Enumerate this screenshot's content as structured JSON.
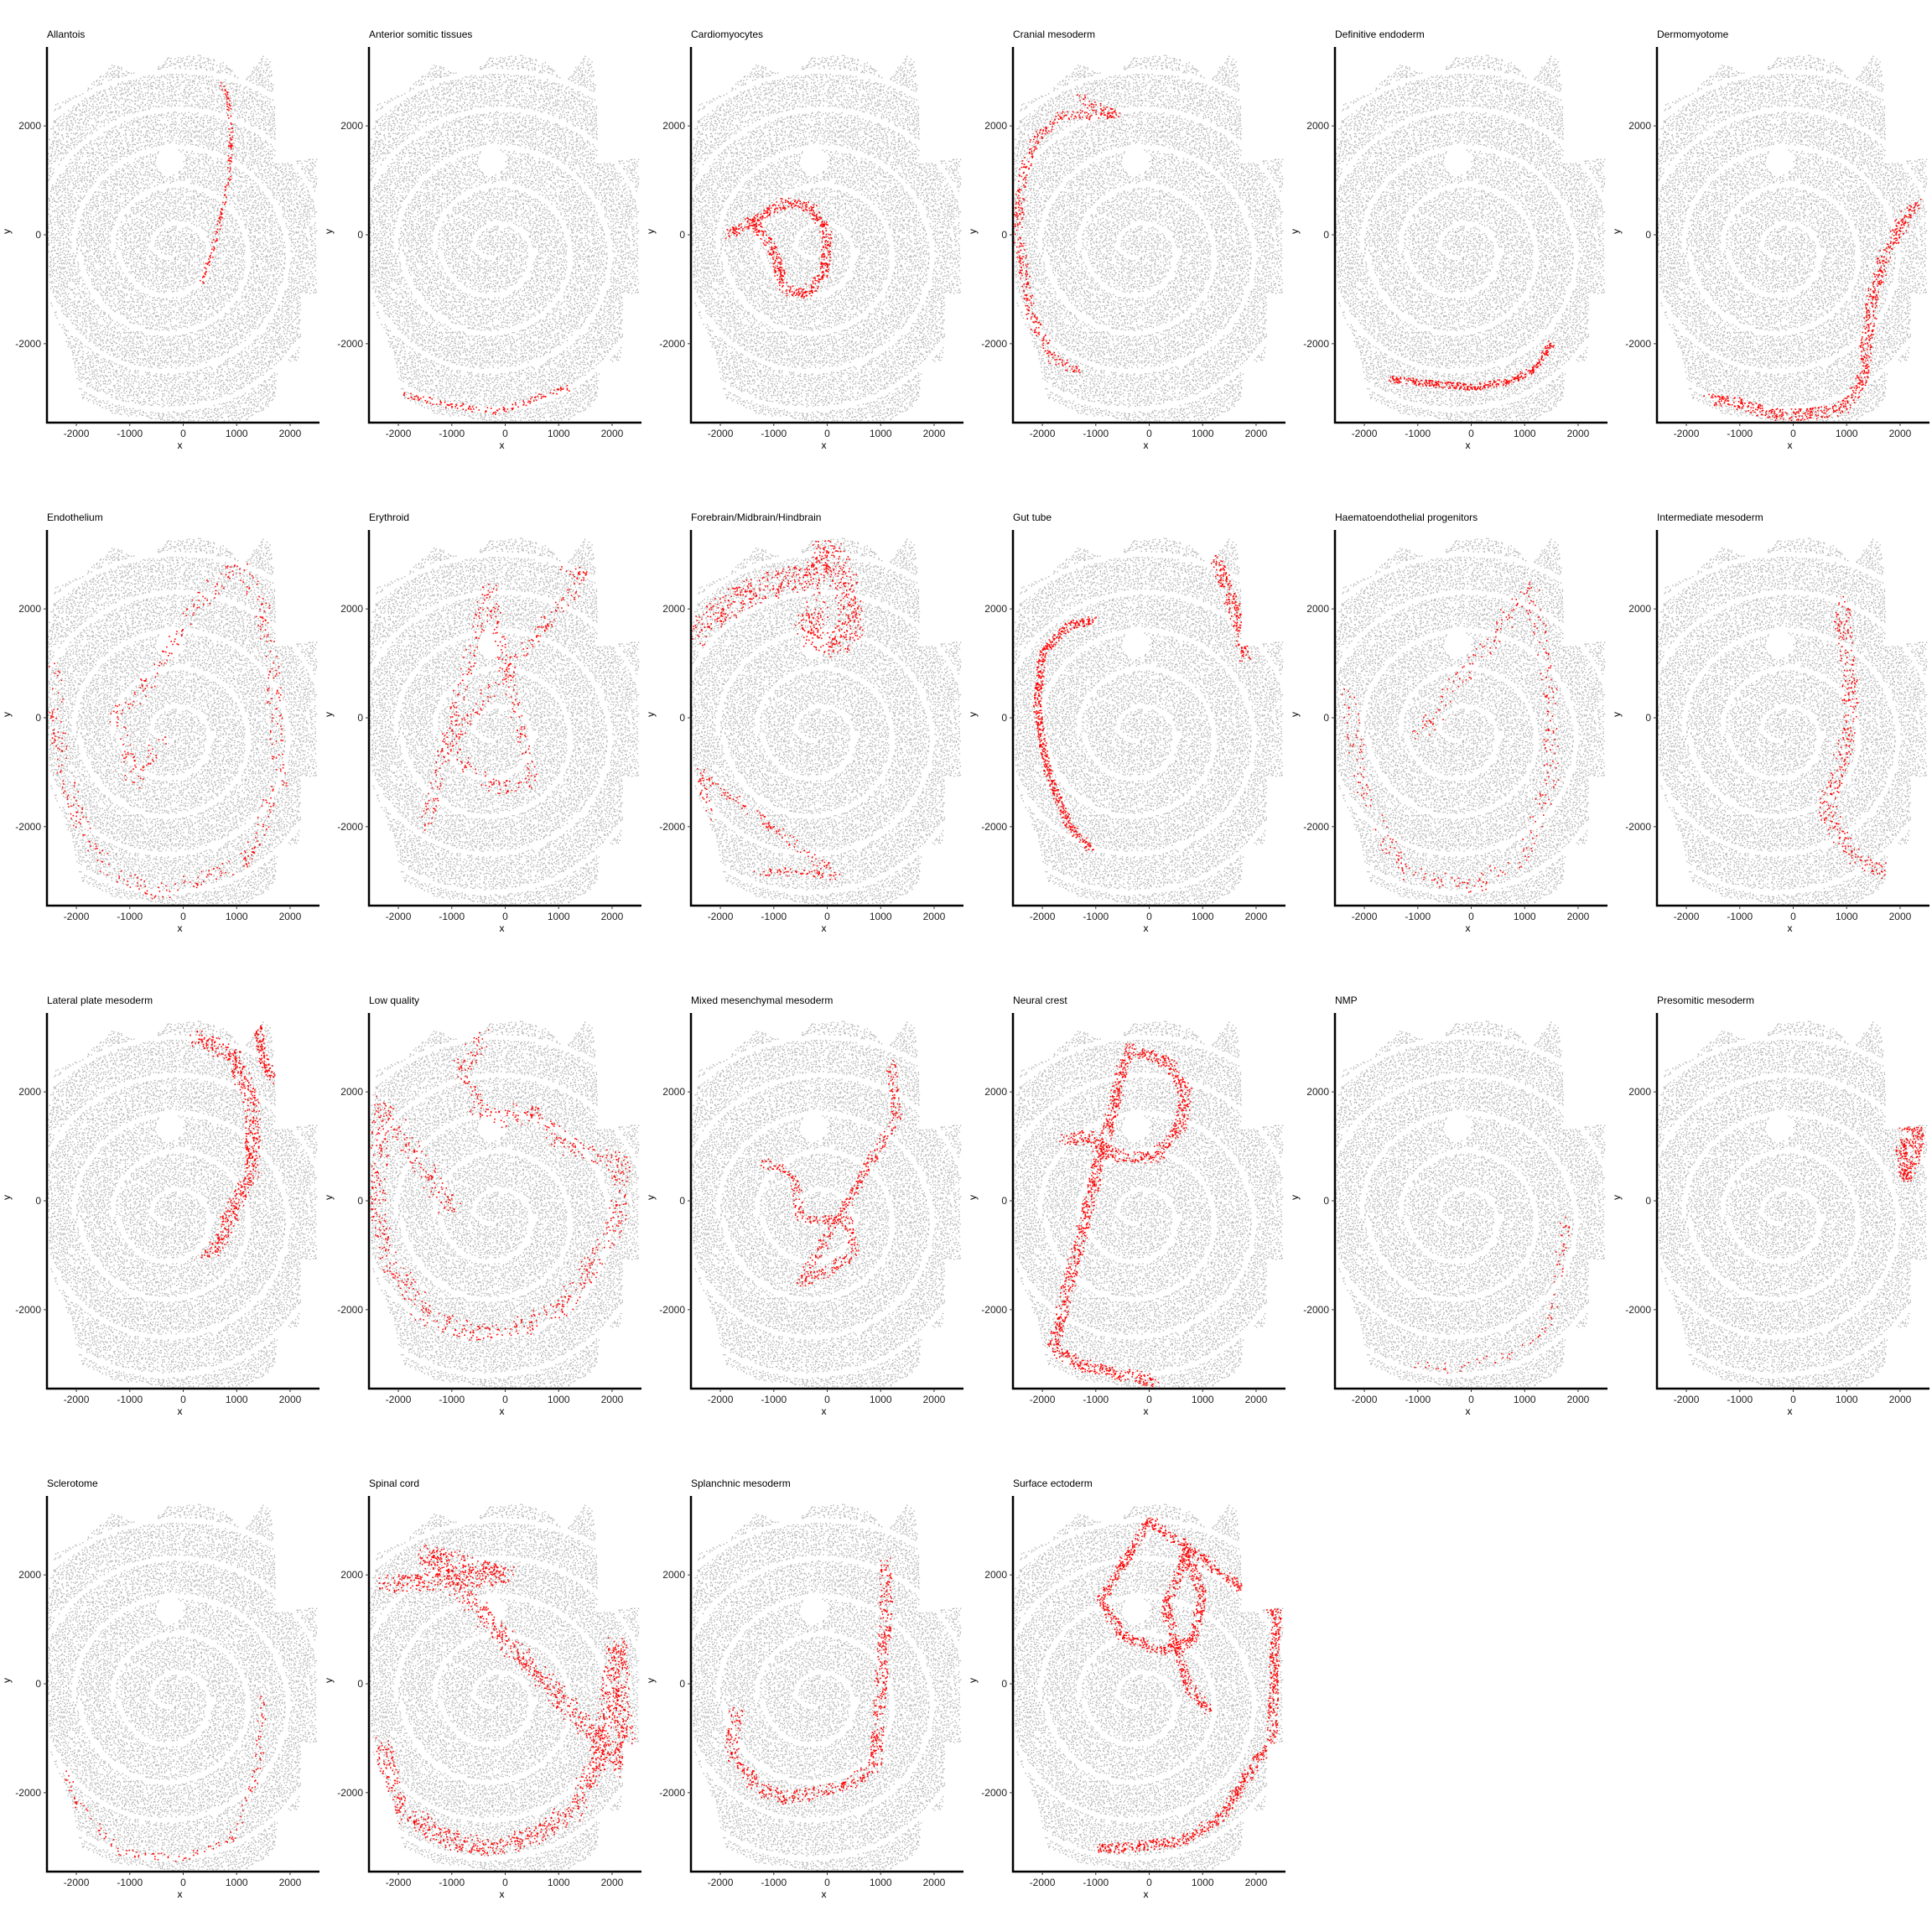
{
  "colors": {
    "background": "#ffffff",
    "all_cells": "#b3b3b3",
    "highlighted_cells": "#ff0000",
    "axis": "#000000"
  },
  "chart_data": {
    "type": "scatter",
    "layout": "facet-grid",
    "columns": 6,
    "xlabel": "x",
    "ylabel": "y",
    "xticks": [
      -2000,
      -1000,
      0,
      1000,
      2000
    ],
    "yticks": [
      -2000,
      0,
      2000
    ],
    "xlim": [
      -2550,
      2550
    ],
    "ylim": [
      -3450,
      3450
    ],
    "legend": "none",
    "background_series": "all cells (grey)",
    "panels": [
      {
        "title": "Allantois",
        "highlight": [
          [
            [
              700,
              2800
            ],
            [
              850,
              2500
            ],
            [
              900,
              1800
            ],
            [
              850,
              1000
            ],
            [
              700,
              300
            ],
            [
              550,
              -300
            ],
            [
              350,
              -900
            ]
          ],
          40,
          0.35
        ]
      },
      {
        "title": "Anterior somitic tissues",
        "highlight": [
          [
            [
              -2100,
              -2900
            ],
            [
              -1200,
              -3100
            ],
            [
              -200,
              -3250
            ],
            [
              600,
              -3000
            ],
            [
              1200,
              -2800
            ]
          ],
          60,
          0.35
        ]
      },
      {
        "title": "Cardiomyocytes",
        "highlight": [
          [
            [
              -1850,
              0
            ],
            [
              -1300,
              300
            ],
            [
              -800,
              600
            ],
            [
              -300,
              500
            ],
            [
              0,
              0
            ],
            [
              -50,
              -700
            ],
            [
              -400,
              -1100
            ],
            [
              -800,
              -1000
            ],
            [
              -1000,
              -300
            ],
            [
              -1350,
              200
            ]
          ],
          90,
          1.0
        ]
      },
      {
        "title": "Cranial mesoderm",
        "highlight": [
          [
            [
              -1300,
              2500
            ],
            [
              -600,
              2200
            ],
            [
              -1600,
              2200
            ],
            [
              -2100,
              1800
            ],
            [
              -2400,
              1000
            ],
            [
              -2450,
              0
            ],
            [
              -2200,
              -1500
            ],
            [
              -1800,
              -2300
            ],
            [
              -1300,
              -2500
            ]
          ],
          90,
          0.55
        ]
      },
      {
        "title": "Definitive endoderm",
        "highlight": [
          [
            [
              -1500,
              -2650
            ],
            [
              -600,
              -2750
            ],
            [
              100,
              -2800
            ],
            [
              700,
              -2700
            ],
            [
              1200,
              -2450
            ],
            [
              1500,
              -2000
            ]
          ],
          60,
          0.95
        ]
      },
      {
        "title": "Dermomyotome",
        "highlight": [
          [
            [
              2300,
              600
            ],
            [
              2000,
              150
            ],
            [
              1700,
              -400
            ],
            [
              1500,
              -1100
            ],
            [
              1400,
              -1800
            ],
            [
              1300,
              -2700
            ],
            [
              900,
              -3200
            ],
            [
              300,
              -3300
            ],
            [
              -400,
              -3300
            ],
            [
              -1000,
              -3100
            ],
            [
              -1600,
              -3000
            ]
          ],
          110,
          0.9
        ]
      },
      {
        "title": "Endothelium",
        "highlight": [
          [
            [
              -2400,
              900
            ],
            [
              -2300,
              -700
            ],
            [
              -2000,
              -1800
            ],
            [
              -1400,
              -2800
            ],
            [
              -500,
              -3200
            ],
            [
              500,
              -2900
            ],
            [
              1200,
              -2600
            ],
            [
              1800,
              -1200
            ],
            [
              1700,
              600
            ],
            [
              1500,
              2000
            ],
            [
              1000,
              2900
            ],
            [
              500,
              2300
            ],
            [
              0,
              1700
            ],
            [
              -700,
              600
            ],
            [
              -1300,
              0
            ],
            [
              -900,
              -1200
            ],
            [
              -400,
              -400
            ]
          ],
          140,
          0.25
        ]
      },
      {
        "title": "Erythroid",
        "highlight": [
          [
            [
              1000,
              2800
            ],
            [
              1500,
              2600
            ],
            [
              -1000,
              -400
            ],
            [
              -700,
              -900
            ],
            [
              -100,
              -1300
            ],
            [
              500,
              -1200
            ],
            [
              -300,
              2400
            ],
            [
              -1500,
              -2000
            ]
          ],
          120,
          0.3
        ]
      },
      {
        "title": "Forebrain/Midbrain/Hindbrain",
        "highlight": [
          [
            [
              -2400,
              1500
            ],
            [
              -2000,
              2000
            ],
            [
              -1500,
              2300
            ],
            [
              -900,
              2500
            ],
            [
              -300,
              2600
            ],
            [
              0,
              3200
            ],
            [
              300,
              2500
            ],
            [
              500,
              1700
            ],
            [
              150,
              1300
            ],
            [
              -400,
              1600
            ],
            [
              -200,
              2100
            ]
          ],
          230,
          1.0
        ],
        "extra": [
          [
            [
              -1400,
              -2800
            ],
            [
              -600,
              -2850
            ],
            [
              200,
              -2900
            ],
            [
              -2400,
              -1000
            ],
            [
              -2200,
              -1800
            ]
          ],
          80,
          0.3
        ]
      },
      {
        "title": "Gut tube",
        "highlight": [
          [
            [
              -1000,
              1800
            ],
            [
              -1500,
              1700
            ],
            [
              -2000,
              1200
            ],
            [
              -2100,
              200
            ],
            [
              -1900,
              -1000
            ],
            [
              -1500,
              -2000
            ],
            [
              -1100,
              -2400
            ]
          ],
          70,
          1.0
        ],
        "extra": [
          [
            [
              1000,
              3200
            ],
            [
              1300,
              2800
            ],
            [
              1600,
              2000
            ],
            [
              1800,
              1100
            ]
          ],
          110,
          1.0
        ]
      },
      {
        "title": "Haematoendothelial progenitors",
        "highlight": [
          [
            [
              -2300,
              500
            ],
            [
              -2000,
              -1500
            ],
            [
              -1300,
              -2800
            ],
            [
              0,
              -3100
            ],
            [
              1000,
              -2600
            ],
            [
              1500,
              -1200
            ],
            [
              1500,
              500
            ],
            [
              1100,
              2400
            ],
            [
              -1000,
              -300
            ],
            [
              -600,
              0
            ]
          ],
          140,
          0.22
        ]
      },
      {
        "title": "Intermediate mesoderm",
        "highlight": [
          [
            [
              900,
              2100
            ],
            [
              1000,
              1200
            ],
            [
              1100,
              0
            ],
            [
              900,
              -800
            ],
            [
              600,
              -1700
            ],
            [
              1100,
              -2500
            ],
            [
              1800,
              -2900
            ]
          ],
          150,
          0.55
        ]
      },
      {
        "title": "Lateral plate mesoderm",
        "highlight": [
          [
            [
              200,
              3000
            ],
            [
              900,
              2700
            ],
            [
              1300,
              1800
            ],
            [
              1300,
              500
            ],
            [
              1000,
              0
            ],
            [
              700,
              -700
            ],
            [
              400,
              -1000
            ]
          ],
          140,
          1.0
        ],
        "extra": [
          [
            [
              1400,
              3200
            ],
            [
              1500,
              2600
            ],
            [
              1700,
              2200
            ]
          ],
          80,
          1.0
        ]
      },
      {
        "title": "Low quality",
        "highlight": [
          [
            [
              -400,
              3000
            ],
            [
              -800,
              2500
            ],
            [
              -500,
              1700
            ],
            [
              0,
              1500
            ],
            [
              500,
              1700
            ],
            [
              1200,
              1000
            ],
            [
              2200,
              700
            ],
            [
              2100,
              -300
            ],
            [
              1500,
              -1400
            ],
            [
              1000,
              -2000
            ],
            [
              300,
              -2300
            ],
            [
              -600,
              -2400
            ],
            [
              -1500,
              -2100
            ],
            [
              -2200,
              -1000
            ],
            [
              -2400,
              0
            ],
            [
              -2300,
              1800
            ],
            [
              -1000,
              -200
            ]
          ],
          170,
          0.45
        ]
      },
      {
        "title": "Mixed mesenchymal mesoderm",
        "highlight": [
          [
            [
              -1200,
              700
            ],
            [
              -900,
              600
            ],
            [
              -600,
              400
            ],
            [
              -500,
              -300
            ],
            [
              400,
              -400
            ],
            [
              500,
              -1000
            ],
            [
              0,
              -1300
            ],
            [
              -500,
              -1500
            ],
            [
              1300,
              1500
            ],
            [
              1200,
              2500
            ]
          ],
          90,
          0.55
        ]
      },
      {
        "title": "Neural crest",
        "highlight": [
          [
            [
              -1600,
              1100
            ],
            [
              -1200,
              1200
            ],
            [
              -800,
              900
            ],
            [
              -400,
              800
            ],
            [
              100,
              800
            ],
            [
              600,
              1400
            ],
            [
              700,
              2000
            ],
            [
              400,
              2500
            ],
            [
              -400,
              2800
            ],
            [
              -1800,
              -2700
            ],
            [
              -1300,
              -3000
            ],
            [
              -500,
              -3200
            ],
            [
              100,
              -3300
            ]
          ],
          110,
          0.95
        ]
      },
      {
        "title": "NMP",
        "highlight": [
          [
            [
              1600,
              -1000
            ],
            [
              1800,
              -300
            ],
            [
              1500,
              -2200
            ],
            [
              900,
              -2800
            ],
            [
              -300,
              -3100
            ],
            [
              -1100,
              -3000
            ]
          ],
          80,
          0.12
        ]
      },
      {
        "title": "Presomitic mesoderm",
        "highlight": [
          [
            [
              2050,
              1400
            ],
            [
              2350,
              1300
            ],
            [
              2300,
              800
            ],
            [
              2100,
              400
            ],
            [
              2000,
              1000
            ],
            [
              2200,
              1100
            ]
          ],
          100,
          1.0
        ]
      },
      {
        "title": "Sclerotome",
        "highlight": [
          [
            [
              -2200,
              -1600
            ],
            [
              -2000,
              -2200
            ],
            [
              -1200,
              -3100
            ],
            [
              0,
              -3200
            ],
            [
              900,
              -2900
            ],
            [
              1400,
              -1600
            ],
            [
              1500,
              -200
            ]
          ],
          70,
          0.18
        ]
      },
      {
        "title": "Spinal cord",
        "highlight": [
          [
            [
              -2300,
              -1100
            ],
            [
              -2000,
              -2300
            ],
            [
              -1200,
              -2800
            ],
            [
              -300,
              -3050
            ],
            [
              500,
              -2800
            ],
            [
              1300,
              -2300
            ],
            [
              1700,
              -1500
            ],
            [
              1900,
              -600
            ],
            [
              2000,
              200
            ],
            [
              2100,
              700
            ],
            [
              2300,
              -1600
            ],
            [
              -1500,
              2400
            ],
            [
              0,
              2000
            ],
            [
              -2300,
              1800
            ]
          ],
          170,
          0.85
        ]
      },
      {
        "title": "Splanchnic mesoderm",
        "highlight": [
          [
            [
              -1700,
              -500
            ],
            [
              -1800,
              -1200
            ],
            [
              -1400,
              -1800
            ],
            [
              -900,
              -2100
            ],
            [
              -100,
              -2000
            ],
            [
              500,
              -1800
            ],
            [
              900,
              -1500
            ],
            [
              1000,
              -200
            ],
            [
              1100,
              1300
            ],
            [
              1100,
              2200
            ]
          ],
          120,
          0.7
        ]
      },
      {
        "title": "Surface ectoderm",
        "highlight": [
          [
            [
              1100,
              -500
            ],
            [
              700,
              0
            ],
            [
              500,
              800
            ],
            [
              300,
              1400
            ],
            [
              700,
              2400
            ],
            [
              1000,
              1600
            ],
            [
              800,
              800
            ],
            [
              200,
              600
            ],
            [
              -500,
              900
            ],
            [
              -900,
              1500
            ],
            [
              -500,
              2200
            ],
            [
              0,
              3000
            ],
            [
              2400,
              1300
            ],
            [
              2350,
              600
            ],
            [
              2300,
              -1000
            ],
            [
              1300,
              -2500
            ],
            [
              600,
              -2900
            ],
            [
              -400,
              -3000
            ],
            [
              -1000,
              -3050
            ]
          ],
          90,
          0.9
        ]
      }
    ]
  }
}
